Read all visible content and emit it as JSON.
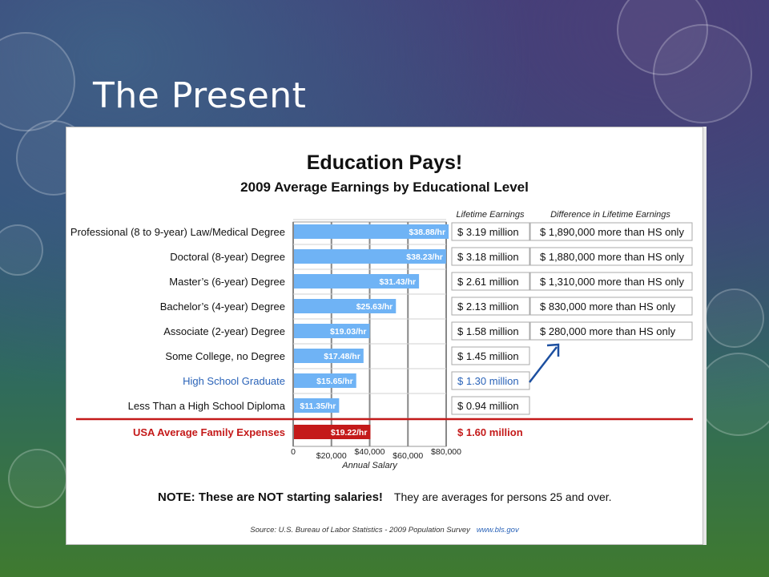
{
  "slide": {
    "title": "The Present"
  },
  "chart_data": {
    "type": "bar",
    "title": "Education Pays!",
    "subtitle": "2009 Average Earnings by Educational Level",
    "xlabel": "Annual Salary",
    "xlim": [
      0,
      80000
    ],
    "x_ticks": [
      "0",
      "$20,000",
      "$40,000",
      "$60,000",
      "$80,000"
    ],
    "column_headers": {
      "lifetime": "Lifetime Earnings",
      "difference": "Difference in Lifetime Earnings"
    },
    "categories": [
      "Professional (8 to 9-year) Law/Medical Degree",
      "Doctoral (8-year) Degree",
      "Master’s (6-year) Degree",
      "Bachelor’s (4-year) Degree",
      "Associate (2-year) Degree",
      "Some College, no Degree",
      "High School Graduate",
      "Less Than a High School Diploma",
      "USA  Average Family Expenses"
    ],
    "hourly_wage": [
      38.88,
      38.23,
      31.43,
      25.63,
      19.03,
      17.48,
      15.65,
      11.35,
      19.22
    ],
    "bar_labels": [
      "$38.88/hr",
      "$38.23/hr",
      "$31.43/hr",
      "$25.63/hr",
      "$19.03/hr",
      "$17.48/hr",
      "$15.65/hr",
      "$11.35/hr",
      "$19.22/hr"
    ],
    "lifetime_earnings": [
      "$ 3.19 million",
      "$ 3.18 million",
      "$ 2.61 million",
      "$ 2.13 million",
      "$ 1.58 million",
      "$ 1.45 million",
      "$ 1.30 million",
      "$ 0.94 million",
      "$ 1.60 million"
    ],
    "difference_vs_hs": [
      "$ 1,890,000 more than HS only",
      "$ 1,880,000 more than HS only",
      "$ 1,310,000 more than HS only",
      "$    830,000 more than HS only",
      "$    280,000 more than HS only"
    ],
    "highlight_index": 6,
    "expense_index": 8,
    "colors": {
      "bar": "#6fb3f5",
      "expense_bar": "#c41a1a",
      "highlight_text": "#2a63b8",
      "expense_text": "#c41a1a",
      "arrow": "#1c4fa0",
      "grid": "#888888"
    },
    "note": {
      "bold": "NOTE: These are NOT starting salaries!",
      "normal": "They are averages for persons 25 and over."
    },
    "source": {
      "text": "Source:  U.S. Bureau of Labor Statistics - 2009 Population Survey",
      "link": "www.bls.gov"
    }
  }
}
